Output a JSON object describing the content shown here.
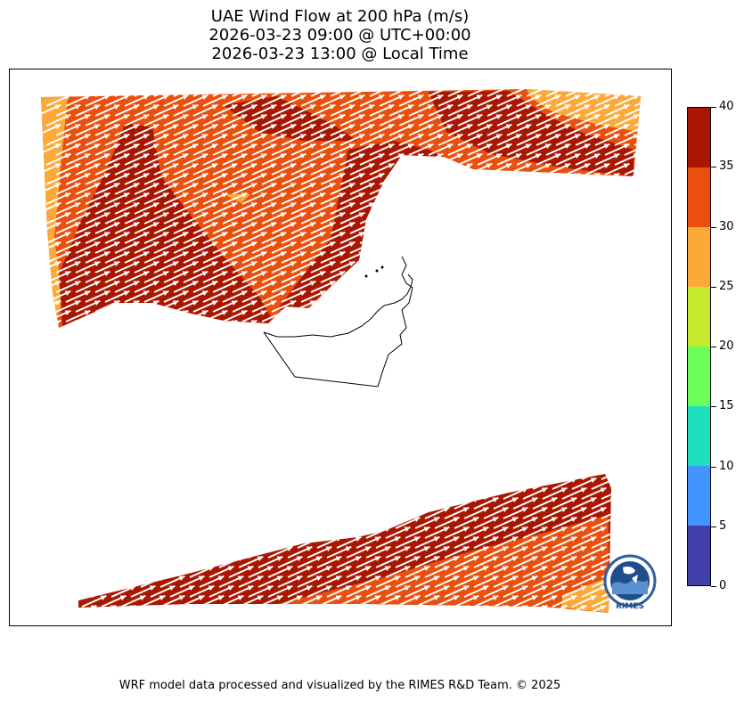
{
  "title": {
    "line1": "UAE Wind Flow at 200 hPa (m/s)",
    "line2": "2026-03-23 09:00 @ UTC+00:00",
    "line3": "2026-03-23 13:00 @ Local Time"
  },
  "colorbar": {
    "levels": [
      0,
      5,
      10,
      15,
      20,
      25,
      30,
      35,
      40
    ],
    "labels": [
      "0",
      "5",
      "10",
      "15",
      "20",
      "25",
      "30",
      "35",
      "40"
    ],
    "colors": [
      "#3f3fa8",
      "#4195ff",
      "#1ee0bd",
      "#6cff5a",
      "#c7ea2f",
      "#fca938",
      "#ea4f0d",
      "#a91601"
    ]
  },
  "map": {
    "wind_direction": "from west-southwest toward east-northeast",
    "dominant_speed_range": "30–40 m/s",
    "vector_color": "#ffffff"
  },
  "logo": {
    "label": "RIMES",
    "ring_text": "Multi-Hazard Early Warning"
  },
  "footer": {
    "credit": "WRF model data processed and visualized by the RIMES R&D Team. © 2025"
  }
}
